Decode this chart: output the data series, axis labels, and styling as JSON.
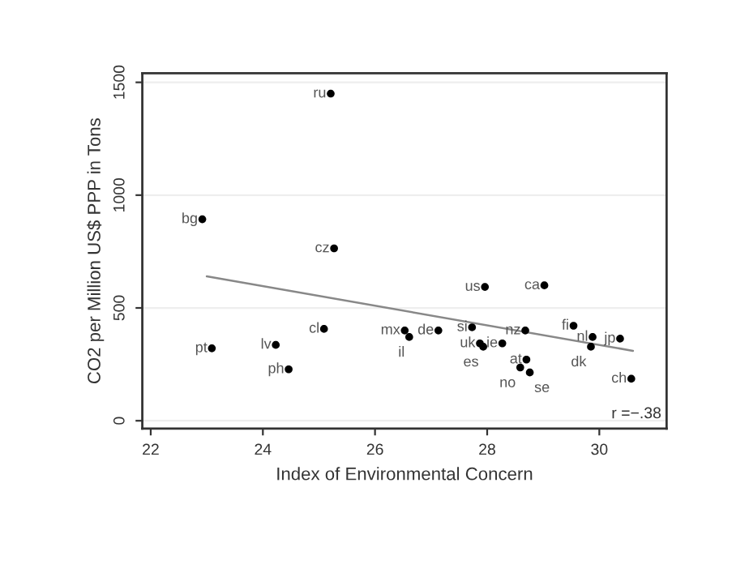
{
  "chart_data": {
    "type": "scatter",
    "xlabel": "Index of Environmental Concern",
    "ylabel": "CO2 per Million US$ PPP in Tons",
    "xlim": [
      21.85,
      31.2
    ],
    "ylim": [
      -35,
      1540
    ],
    "xticks": [
      22,
      24,
      26,
      28,
      30
    ],
    "yticks": [
      0,
      500,
      1000,
      1500
    ],
    "grid": "y",
    "marker": "circle",
    "series": [
      {
        "color": "#000000",
        "x": [
          25.21,
          22.92,
          25.27,
          27.96,
          29.02,
          23.09,
          24.23,
          24.46,
          25.09,
          26.53,
          26.61,
          27.13,
          27.73,
          27.87,
          27.93,
          28.27,
          28.68,
          28.7,
          28.59,
          28.76,
          29.54,
          29.88,
          29.85,
          30.37,
          30.57
        ],
        "values": [
          1450,
          893,
          764,
          593,
          600,
          321,
          336,
          228,
          407,
          400,
          371,
          400,
          414,
          343,
          328,
          343,
          400,
          271,
          236,
          214,
          421,
          371,
          328,
          364,
          186
        ]
      },
      {
        "type": "line",
        "color": "#888888",
        "marker": "none",
        "x": [
          23.0,
          30.6
        ],
        "values": [
          640,
          310
        ]
      }
    ],
    "annotations": [
      {
        "text": "ru",
        "x": 25.21,
        "y": 1450
      },
      {
        "text": "bg",
        "x": 22.92,
        "y": 893
      },
      {
        "text": "cz",
        "x": 25.27,
        "y": 764
      },
      {
        "text": "us",
        "x": 27.96,
        "y": 593
      },
      {
        "text": "ca",
        "x": 29.02,
        "y": 600
      },
      {
        "text": "pt",
        "x": 23.09,
        "y": 321
      },
      {
        "text": "lv",
        "x": 24.23,
        "y": 336
      },
      {
        "text": "ph",
        "x": 24.46,
        "y": 228
      },
      {
        "text": "cl",
        "x": 25.09,
        "y": 407
      },
      {
        "text": "mx",
        "x": 26.53,
        "y": 400
      },
      {
        "text": "il",
        "x": 26.61,
        "y": 371
      },
      {
        "text": "de",
        "x": 27.13,
        "y": 400
      },
      {
        "text": "si",
        "x": 27.73,
        "y": 414
      },
      {
        "text": "uk",
        "x": 27.87,
        "y": 343
      },
      {
        "text": "es",
        "x": 27.93,
        "y": 328
      },
      {
        "text": "ie",
        "x": 28.27,
        "y": 343
      },
      {
        "text": "nz",
        "x": 28.68,
        "y": 400
      },
      {
        "text": "at",
        "x": 28.7,
        "y": 271
      },
      {
        "text": "no",
        "x": 28.59,
        "y": 236
      },
      {
        "text": "se",
        "x": 28.76,
        "y": 214
      },
      {
        "text": "fi",
        "x": 29.54,
        "y": 421
      },
      {
        "text": "nl",
        "x": 29.88,
        "y": 371
      },
      {
        "text": "dk",
        "x": 29.85,
        "y": 328
      },
      {
        "text": "jp",
        "x": 30.37,
        "y": 364
      },
      {
        "text": "ch",
        "x": 30.57,
        "y": 186
      },
      "r =−.38"
    ]
  }
}
